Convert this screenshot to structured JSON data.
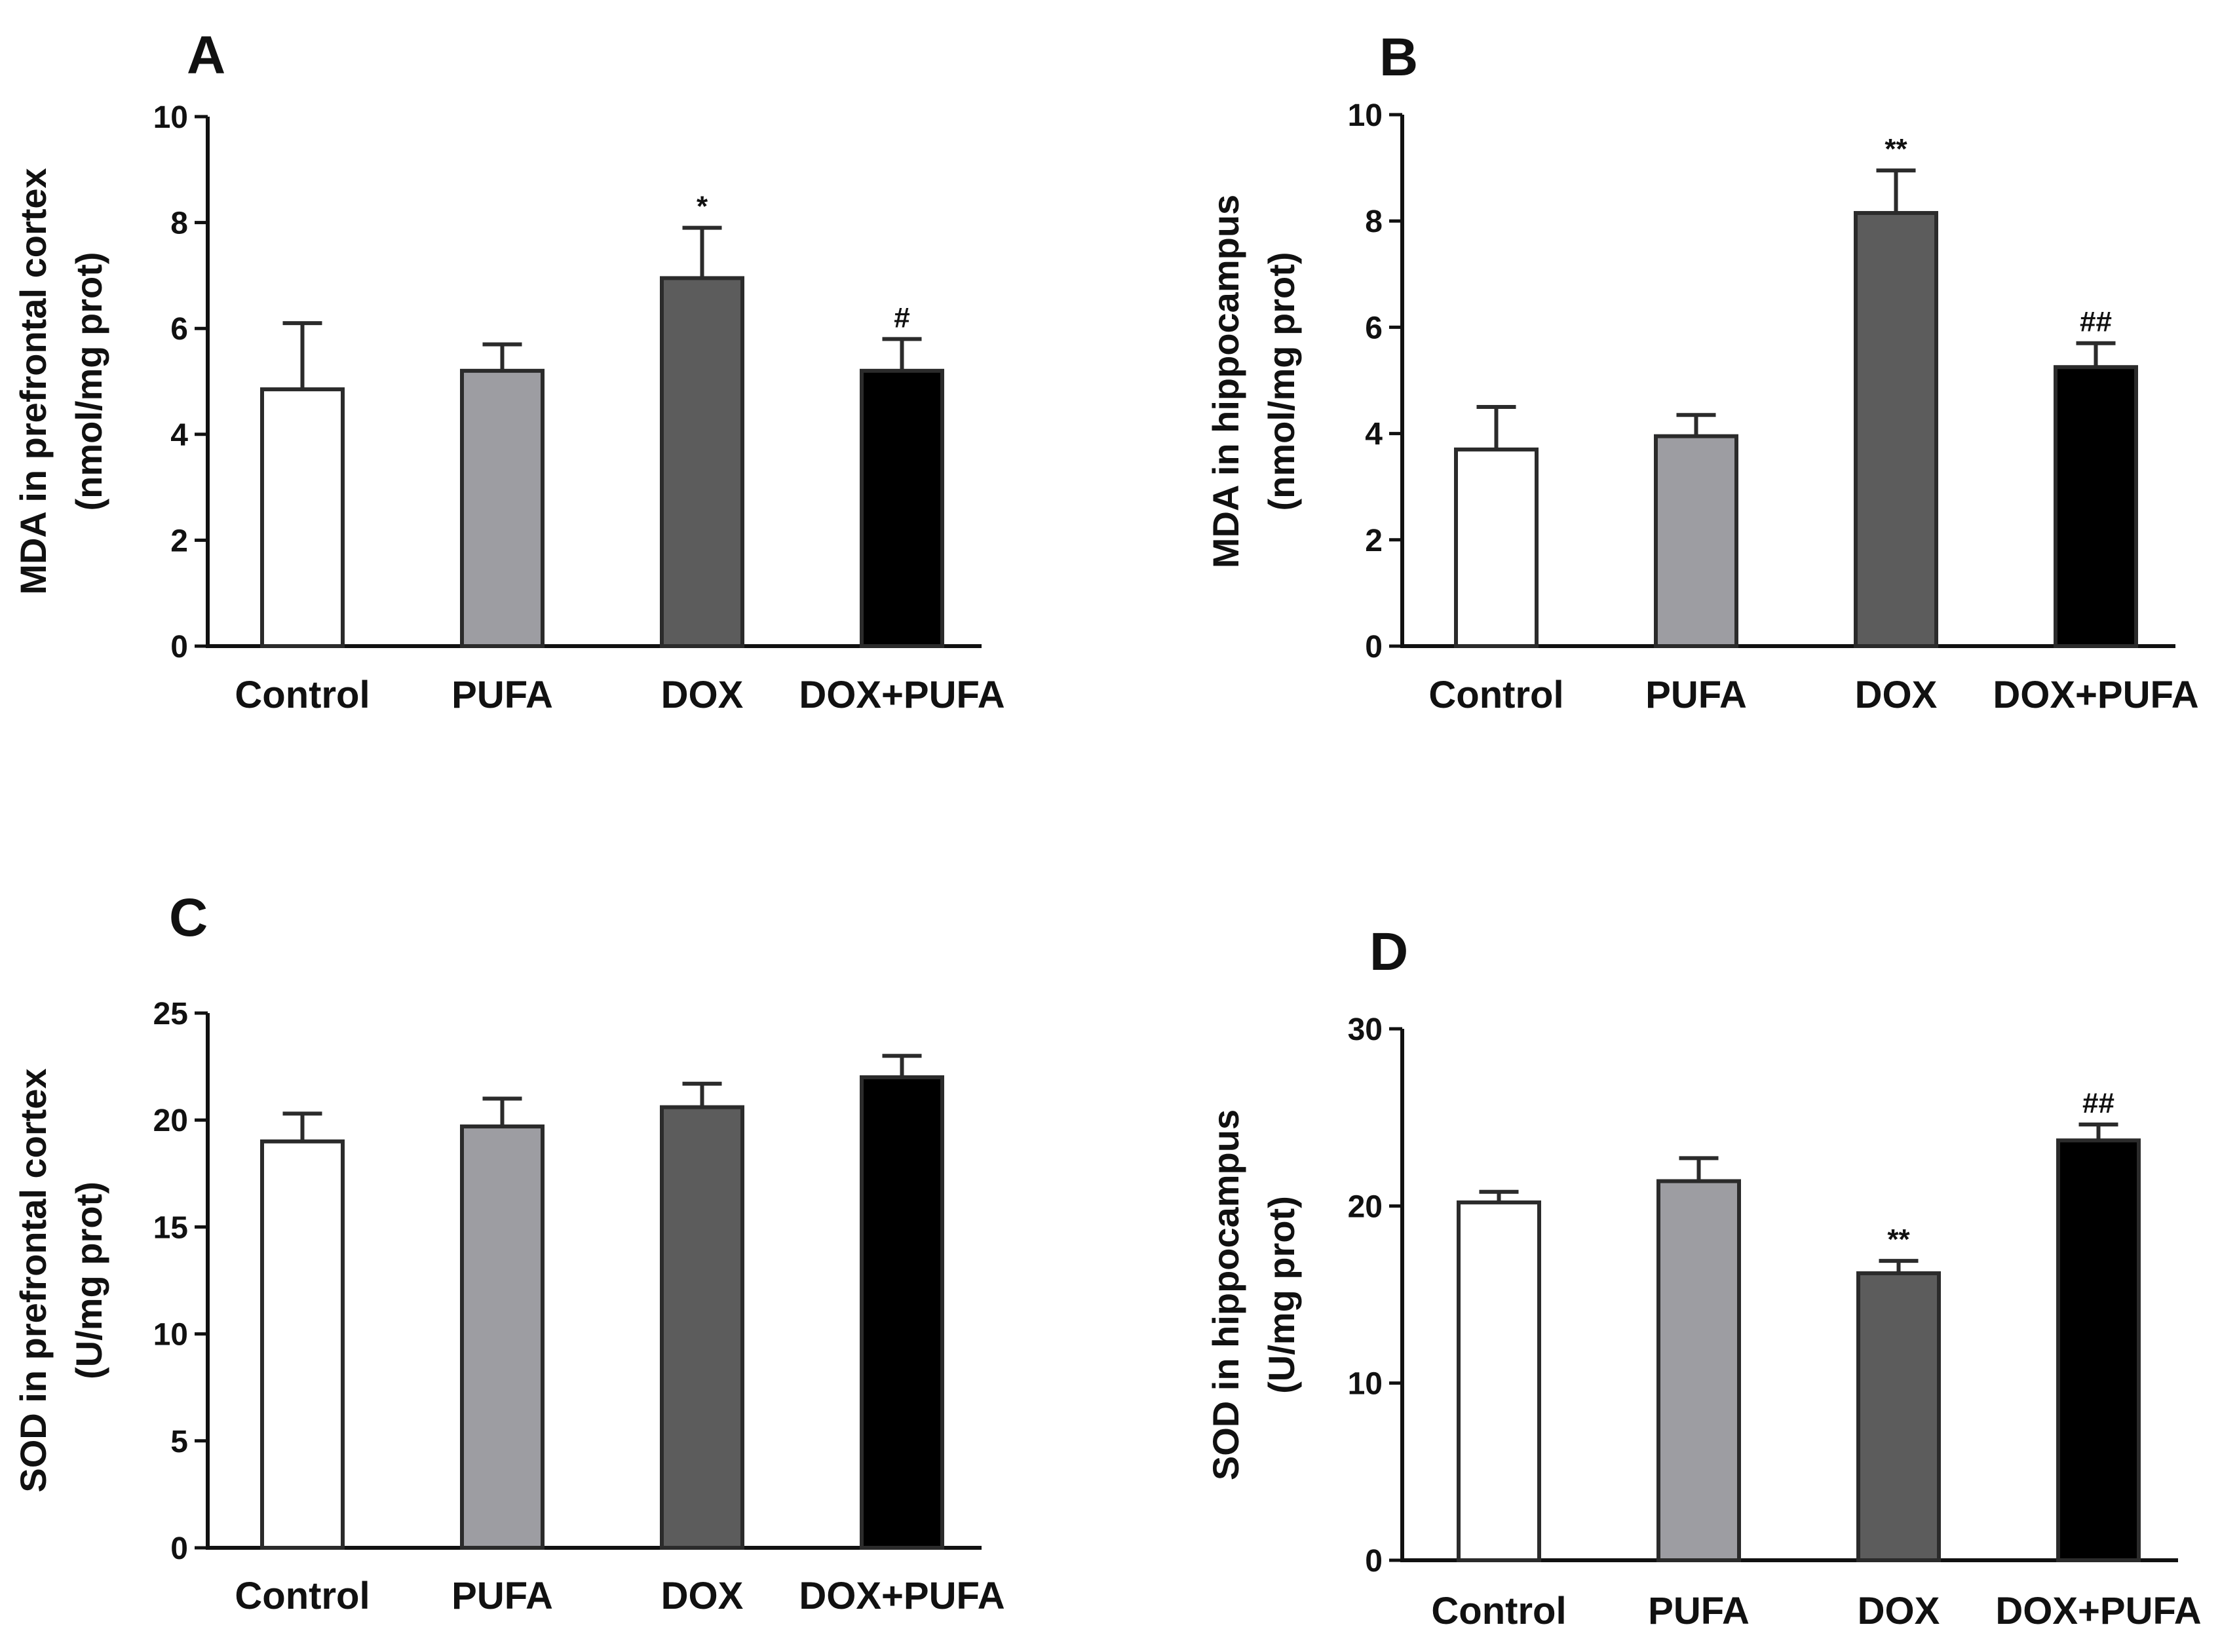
{
  "chart_data": [
    {
      "type": "bar",
      "panel": "A",
      "categories": [
        "Control",
        "PUFA",
        "DOX",
        "DOX+PUFA"
      ],
      "values": [
        4.85,
        5.2,
        6.95,
        5.2
      ],
      "errors": [
        1.25,
        0.5,
        0.95,
        0.6
      ],
      "annotations": [
        "",
        "",
        "*",
        "#"
      ],
      "ylabel_line1": "MDA in prefrontal cortex",
      "ylabel_line2": "(nmol/mg prot)",
      "ylim": [
        0,
        10
      ],
      "yticks": [
        0,
        2,
        4,
        6,
        8,
        10
      ]
    },
    {
      "type": "bar",
      "panel": "B",
      "categories": [
        "Control",
        "PUFA",
        "DOX",
        "DOX+PUFA"
      ],
      "values": [
        3.7,
        3.95,
        8.15,
        5.25
      ],
      "errors": [
        0.8,
        0.4,
        0.8,
        0.45
      ],
      "annotations": [
        "",
        "",
        "**",
        "##"
      ],
      "ylabel_line1": "MDA in hippocampus",
      "ylabel_line2": "(nmol/mg prot)",
      "ylim": [
        0,
        10
      ],
      "yticks": [
        0,
        2,
        4,
        6,
        8,
        10
      ]
    },
    {
      "type": "bar",
      "panel": "C",
      "categories": [
        "Control",
        "PUFA",
        "DOX",
        "DOX+PUFA"
      ],
      "values": [
        19.0,
        19.7,
        20.6,
        22.0
      ],
      "errors": [
        1.3,
        1.3,
        1.1,
        1.0
      ],
      "annotations": [
        "",
        "",
        "",
        ""
      ],
      "ylabel_line1": "SOD in prefrontal cortex",
      "ylabel_line2": "(U/mg prot)",
      "ylim": [
        0,
        25
      ],
      "yticks": [
        0,
        5,
        10,
        15,
        20,
        25
      ]
    },
    {
      "type": "bar",
      "panel": "D",
      "categories": [
        "Control",
        "PUFA",
        "DOX",
        "DOX+PUFA"
      ],
      "values": [
        20.2,
        21.4,
        16.2,
        23.7
      ],
      "errors": [
        0.6,
        1.3,
        0.7,
        0.9
      ],
      "annotations": [
        "",
        "",
        "**",
        "##"
      ],
      "ylabel_line1": "SOD in hippocampus",
      "ylabel_line2": "(U/mg prot)",
      "ylim": [
        0,
        30
      ],
      "yticks": [
        0,
        10,
        20,
        30
      ]
    }
  ],
  "bar_colors": [
    "#ffffff",
    "#9d9da2",
    "#5c5c5c",
    "#000000"
  ],
  "outline_color": "#2b2b2b"
}
